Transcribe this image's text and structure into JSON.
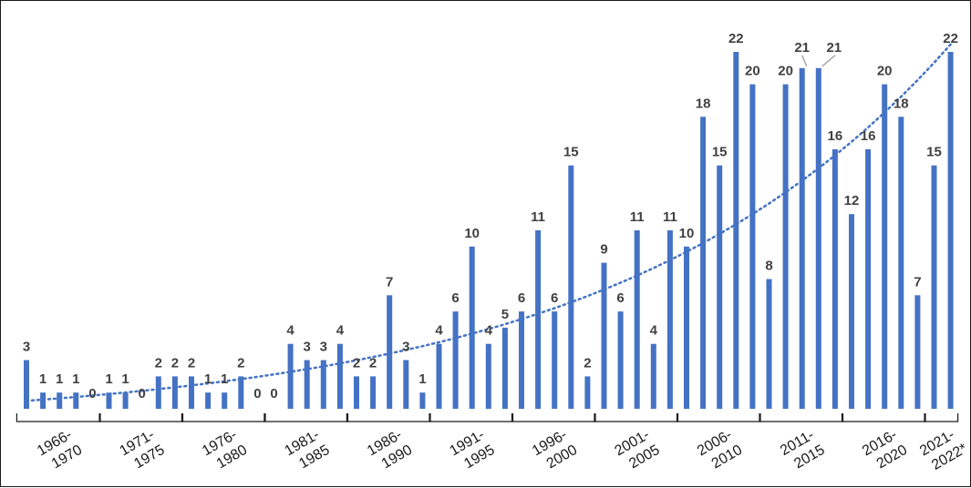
{
  "chart_data": {
    "type": "bar",
    "title": "",
    "xlabel": "",
    "ylabel": "",
    "ylim": [
      0,
      24
    ],
    "grid": false,
    "legend": "none",
    "trendline": "exponential, dotted",
    "colors": {
      "bar": "#4472C4",
      "trend": "#4472C4",
      "label": "#404040"
    },
    "groups": [
      {
        "line1": "1966-",
        "line2": "1970",
        "values": [
          3,
          1,
          1,
          1,
          0
        ]
      },
      {
        "line1": "1971-",
        "line2": "1975",
        "values": [
          1,
          1,
          0,
          2,
          2
        ]
      },
      {
        "line1": "1976-",
        "line2": "1980",
        "values": [
          2,
          1,
          1,
          2,
          0
        ]
      },
      {
        "line1": "1981-",
        "line2": "1985",
        "values": [
          0,
          4,
          3,
          3,
          4
        ]
      },
      {
        "line1": "1986-",
        "line2": "1990",
        "values": [
          2,
          2,
          7,
          3,
          1
        ]
      },
      {
        "line1": "1991-",
        "line2": "1995",
        "values": [
          4,
          6,
          10,
          4,
          5
        ]
      },
      {
        "line1": "1996-",
        "line2": "2000",
        "values": [
          6,
          11,
          6,
          15,
          2
        ]
      },
      {
        "line1": "2001-",
        "line2": "2005",
        "values": [
          9,
          6,
          11,
          4,
          11
        ]
      },
      {
        "line1": "2006-",
        "line2": "2010",
        "values": [
          10,
          18,
          15,
          22,
          20
        ]
      },
      {
        "line1": "2011-",
        "line2": "2015",
        "values": [
          8,
          20,
          21,
          21,
          16
        ]
      },
      {
        "line1": "2016-",
        "line2": "2020",
        "values": [
          12,
          16,
          20,
          18,
          7
        ]
      },
      {
        "line1": "2021-",
        "line2": "2022*",
        "values": [
          15,
          22
        ]
      }
    ]
  }
}
